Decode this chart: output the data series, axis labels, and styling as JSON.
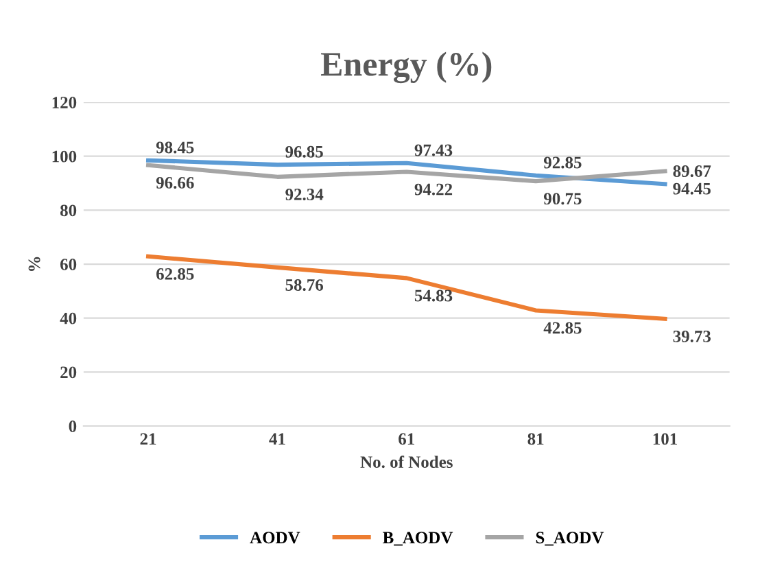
{
  "chart_data": {
    "type": "line",
    "title": "Energy (%)",
    "xlabel": "No. of Nodes",
    "ylabel": "%",
    "categories": [
      "21",
      "41",
      "61",
      "81",
      "101"
    ],
    "series": [
      {
        "name": "AODV",
        "color": "#5b9bd5",
        "values": [
          98.45,
          96.85,
          97.43,
          92.85,
          89.67
        ]
      },
      {
        "name": "B_AODV",
        "color": "#ed7d31",
        "values": [
          62.85,
          58.76,
          54.83,
          42.85,
          39.73
        ]
      },
      {
        "name": "S_AODV",
        "color": "#a5a5a5",
        "values": [
          96.66,
          92.34,
          94.22,
          90.75,
          94.45
        ]
      }
    ],
    "ylim": [
      0,
      120
    ],
    "yticks": [
      0,
      20,
      40,
      60,
      80,
      100,
      120
    ],
    "grid": "y",
    "legend": "bottom",
    "data_labels": true,
    "marker": "none",
    "line_style": "solid"
  }
}
